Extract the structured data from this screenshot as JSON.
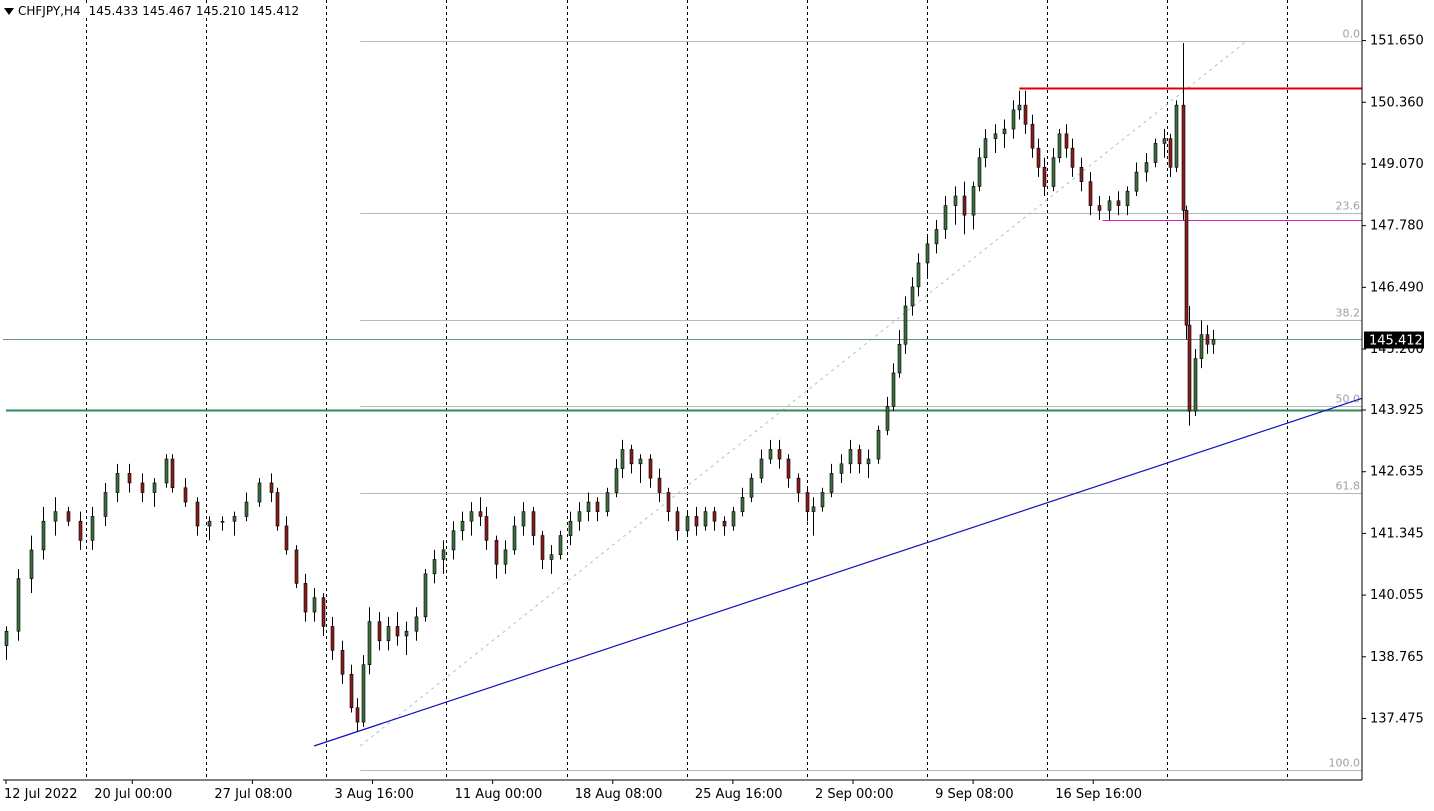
{
  "header": {
    "symbol": "CHFJPY,H4",
    "open": "145.433",
    "high": "145.467",
    "low": "145.210",
    "close": "145.412"
  },
  "colors": {
    "background": "#ffffff",
    "bull": "#3c6e3c",
    "bear": "#8b1c1c",
    "resistance": "#e00000",
    "support": "#2e8b57",
    "magenta": "#d020d0",
    "trendline": "#1010c0",
    "fib": "#b8b8b8",
    "current": "#6e8e9e"
  },
  "chart_data": {
    "type": "candlestick",
    "symbol": "CHFJPY",
    "timeframe": "H4",
    "y_axis": {
      "min": 136.9,
      "max": 151.85,
      "ticks": [
        "151.650",
        "150.360",
        "149.070",
        "147.780",
        "146.490",
        "145.200",
        "143.925",
        "142.635",
        "141.345",
        "140.055",
        "138.765",
        "137.475"
      ]
    },
    "x_axis": {
      "labels": [
        {
          "label": "12 Jul 2022",
          "index": 0
        },
        {
          "label": "20 Jul 00:00",
          "index": 41
        },
        {
          "label": "27 Jul 08:00",
          "index": 80
        },
        {
          "label": "3 Aug 16:00",
          "index": 119
        },
        {
          "label": "11 Aug 00:00",
          "index": 158
        },
        {
          "label": "18 Aug 08:00",
          "index": 197
        },
        {
          "label": "25 Aug 16:00",
          "index": 236
        },
        {
          "label": "2 Sep 00:00",
          "index": 275
        },
        {
          "label": "9 Sep 08:00",
          "index": 314
        },
        {
          "label": "16 Sep 16:00",
          "index": 353
        }
      ],
      "vlines": [
        26,
        65,
        104,
        143,
        182,
        221,
        260,
        299,
        338,
        377,
        416
      ]
    },
    "current_price": {
      "label": "145.412",
      "value": 145.412
    },
    "fibonacci": {
      "start_index": 115,
      "end_index": 403,
      "levels": [
        {
          "label": "0.0",
          "value": 151.65
        },
        {
          "label": "23.6",
          "value": 148.04
        },
        {
          "label": "38.2",
          "value": 145.81
        },
        {
          "label": "50.0",
          "value": 144.0
        },
        {
          "label": "61.8",
          "value": 142.2
        },
        {
          "label": "100.0",
          "value": 136.4
        }
      ]
    },
    "horizontal_lines": [
      {
        "name": "resistance",
        "value": 150.65,
        "from_index": 329,
        "to_index": 461
      },
      {
        "name": "support",
        "value": 143.92,
        "from_index": 0,
        "to_index": 461
      },
      {
        "name": "swing-low-level",
        "value": 147.9,
        "from_index": 356,
        "to_index": 461
      }
    ],
    "trendline": {
      "x1": 100,
      "y1": 136.9,
      "x2": 461,
      "y2": 144.17
    },
    "candles": [
      {
        "i": 0,
        "o": 139.0,
        "h": 139.4,
        "l": 138.7,
        "c": 139.3
      },
      {
        "i": 4,
        "o": 139.3,
        "h": 140.6,
        "l": 139.1,
        "c": 140.4
      },
      {
        "i": 8,
        "o": 140.4,
        "h": 141.3,
        "l": 140.1,
        "c": 141.0
      },
      {
        "i": 12,
        "o": 141.0,
        "h": 141.9,
        "l": 140.8,
        "c": 141.6
      },
      {
        "i": 16,
        "o": 141.6,
        "h": 142.1,
        "l": 141.3,
        "c": 141.8
      },
      {
        "i": 20,
        "o": 141.8,
        "h": 141.9,
        "l": 141.5,
        "c": 141.6
      },
      {
        "i": 24,
        "o": 141.6,
        "h": 141.8,
        "l": 141.0,
        "c": 141.2
      },
      {
        "i": 28,
        "o": 141.2,
        "h": 141.9,
        "l": 141.0,
        "c": 141.7
      },
      {
        "i": 32,
        "o": 141.7,
        "h": 142.4,
        "l": 141.5,
        "c": 142.2
      },
      {
        "i": 36,
        "o": 142.2,
        "h": 142.8,
        "l": 142.0,
        "c": 142.6
      },
      {
        "i": 40,
        "o": 142.6,
        "h": 142.8,
        "l": 142.2,
        "c": 142.4
      },
      {
        "i": 44,
        "o": 142.4,
        "h": 142.6,
        "l": 142.0,
        "c": 142.2
      },
      {
        "i": 48,
        "o": 142.2,
        "h": 142.5,
        "l": 141.9,
        "c": 142.4
      },
      {
        "i": 52,
        "o": 142.4,
        "h": 143.0,
        "l": 142.3,
        "c": 142.9
      },
      {
        "i": 54,
        "o": 142.9,
        "h": 143.0,
        "l": 142.2,
        "c": 142.3
      },
      {
        "i": 58,
        "o": 142.3,
        "h": 142.5,
        "l": 141.9,
        "c": 142.0
      },
      {
        "i": 62,
        "o": 142.0,
        "h": 142.1,
        "l": 141.3,
        "c": 141.5
      },
      {
        "i": 66,
        "o": 141.5,
        "h": 141.7,
        "l": 141.2,
        "c": 141.6
      },
      {
        "i": 70,
        "o": 141.6,
        "h": 141.7,
        "l": 141.4,
        "c": 141.6
      },
      {
        "i": 74,
        "o": 141.6,
        "h": 141.8,
        "l": 141.3,
        "c": 141.7
      },
      {
        "i": 78,
        "o": 141.7,
        "h": 142.2,
        "l": 141.6,
        "c": 142.0
      },
      {
        "i": 82,
        "o": 142.0,
        "h": 142.5,
        "l": 141.9,
        "c": 142.4
      },
      {
        "i": 86,
        "o": 142.4,
        "h": 142.6,
        "l": 142.0,
        "c": 142.2
      },
      {
        "i": 88,
        "o": 142.2,
        "h": 142.3,
        "l": 141.4,
        "c": 141.5
      },
      {
        "i": 91,
        "o": 141.5,
        "h": 141.7,
        "l": 140.9,
        "c": 141.0
      },
      {
        "i": 94,
        "o": 141.0,
        "h": 141.1,
        "l": 140.2,
        "c": 140.3
      },
      {
        "i": 97,
        "o": 140.3,
        "h": 140.5,
        "l": 139.5,
        "c": 139.7
      },
      {
        "i": 100,
        "o": 139.7,
        "h": 140.2,
        "l": 139.5,
        "c": 140.0
      },
      {
        "i": 103,
        "o": 140.0,
        "h": 140.1,
        "l": 139.2,
        "c": 139.4
      },
      {
        "i": 106,
        "o": 139.4,
        "h": 139.6,
        "l": 138.7,
        "c": 138.9
      },
      {
        "i": 109,
        "o": 138.9,
        "h": 139.1,
        "l": 138.2,
        "c": 138.4
      },
      {
        "i": 112,
        "o": 138.4,
        "h": 138.6,
        "l": 137.6,
        "c": 137.7
      },
      {
        "i": 114,
        "o": 137.7,
        "h": 137.9,
        "l": 137.2,
        "c": 137.4
      },
      {
        "i": 116,
        "o": 137.4,
        "h": 138.8,
        "l": 137.3,
        "c": 138.6
      },
      {
        "i": 118,
        "o": 138.6,
        "h": 139.8,
        "l": 138.4,
        "c": 139.5
      },
      {
        "i": 121,
        "o": 139.5,
        "h": 139.7,
        "l": 138.9,
        "c": 139.1
      },
      {
        "i": 124,
        "o": 139.1,
        "h": 139.6,
        "l": 138.9,
        "c": 139.4
      },
      {
        "i": 127,
        "o": 139.4,
        "h": 139.7,
        "l": 139.0,
        "c": 139.2
      },
      {
        "i": 130,
        "o": 139.2,
        "h": 139.5,
        "l": 138.8,
        "c": 139.3
      },
      {
        "i": 133,
        "o": 139.3,
        "h": 139.8,
        "l": 139.1,
        "c": 139.6
      },
      {
        "i": 136,
        "o": 139.6,
        "h": 140.6,
        "l": 139.5,
        "c": 140.5
      },
      {
        "i": 139,
        "o": 140.5,
        "h": 141.0,
        "l": 140.3,
        "c": 140.8
      },
      {
        "i": 142,
        "o": 140.8,
        "h": 141.2,
        "l": 140.5,
        "c": 141.0
      },
      {
        "i": 145,
        "o": 141.0,
        "h": 141.6,
        "l": 140.8,
        "c": 141.4
      },
      {
        "i": 148,
        "o": 141.4,
        "h": 141.8,
        "l": 141.2,
        "c": 141.6
      },
      {
        "i": 151,
        "o": 141.6,
        "h": 142.0,
        "l": 141.3,
        "c": 141.8
      },
      {
        "i": 154,
        "o": 141.8,
        "h": 142.1,
        "l": 141.5,
        "c": 141.7
      },
      {
        "i": 156,
        "o": 141.7,
        "h": 141.9,
        "l": 141.0,
        "c": 141.2
      },
      {
        "i": 159,
        "o": 141.2,
        "h": 141.3,
        "l": 140.4,
        "c": 140.7
      },
      {
        "i": 162,
        "o": 140.7,
        "h": 141.2,
        "l": 140.5,
        "c": 141.0
      },
      {
        "i": 165,
        "o": 141.0,
        "h": 141.7,
        "l": 140.9,
        "c": 141.5
      },
      {
        "i": 168,
        "o": 141.5,
        "h": 142.0,
        "l": 141.3,
        "c": 141.8
      },
      {
        "i": 171,
        "o": 141.8,
        "h": 141.9,
        "l": 141.1,
        "c": 141.3
      },
      {
        "i": 174,
        "o": 141.3,
        "h": 141.4,
        "l": 140.6,
        "c": 140.8
      },
      {
        "i": 177,
        "o": 140.8,
        "h": 141.1,
        "l": 140.5,
        "c": 140.9
      },
      {
        "i": 180,
        "o": 140.9,
        "h": 141.4,
        "l": 140.8,
        "c": 141.3
      },
      {
        "i": 183,
        "o": 141.3,
        "h": 141.8,
        "l": 141.1,
        "c": 141.6
      },
      {
        "i": 186,
        "o": 141.6,
        "h": 142.0,
        "l": 141.4,
        "c": 141.8
      },
      {
        "i": 189,
        "o": 141.8,
        "h": 142.2,
        "l": 141.6,
        "c": 142.0
      },
      {
        "i": 192,
        "o": 142.0,
        "h": 142.1,
        "l": 141.6,
        "c": 141.8
      },
      {
        "i": 195,
        "o": 141.8,
        "h": 142.3,
        "l": 141.7,
        "c": 142.2
      },
      {
        "i": 198,
        "o": 142.2,
        "h": 142.9,
        "l": 142.1,
        "c": 142.7
      },
      {
        "i": 200,
        "o": 142.7,
        "h": 143.3,
        "l": 142.5,
        "c": 143.1
      },
      {
        "i": 203,
        "o": 143.1,
        "h": 143.2,
        "l": 142.6,
        "c": 142.8
      },
      {
        "i": 206,
        "o": 142.8,
        "h": 143.0,
        "l": 142.4,
        "c": 142.9
      },
      {
        "i": 209,
        "o": 142.9,
        "h": 143.0,
        "l": 142.3,
        "c": 142.5
      },
      {
        "i": 212,
        "o": 142.5,
        "h": 142.7,
        "l": 142.0,
        "c": 142.2
      },
      {
        "i": 215,
        "o": 142.2,
        "h": 142.3,
        "l": 141.6,
        "c": 141.8
      },
      {
        "i": 218,
        "o": 141.8,
        "h": 141.9,
        "l": 141.2,
        "c": 141.4
      },
      {
        "i": 221,
        "o": 141.4,
        "h": 141.8,
        "l": 141.3,
        "c": 141.7
      },
      {
        "i": 224,
        "o": 141.7,
        "h": 141.9,
        "l": 141.3,
        "c": 141.5
      },
      {
        "i": 227,
        "o": 141.5,
        "h": 141.9,
        "l": 141.4,
        "c": 141.8
      },
      {
        "i": 230,
        "o": 141.8,
        "h": 141.9,
        "l": 141.4,
        "c": 141.6
      },
      {
        "i": 233,
        "o": 141.6,
        "h": 141.7,
        "l": 141.3,
        "c": 141.5
      },
      {
        "i": 236,
        "o": 141.5,
        "h": 141.9,
        "l": 141.4,
        "c": 141.8
      },
      {
        "i": 239,
        "o": 141.8,
        "h": 142.3,
        "l": 141.7,
        "c": 142.1
      },
      {
        "i": 242,
        "o": 142.1,
        "h": 142.6,
        "l": 142.0,
        "c": 142.5
      },
      {
        "i": 245,
        "o": 142.5,
        "h": 143.1,
        "l": 142.4,
        "c": 142.9
      },
      {
        "i": 248,
        "o": 142.9,
        "h": 143.3,
        "l": 142.8,
        "c": 143.1
      },
      {
        "i": 251,
        "o": 143.1,
        "h": 143.3,
        "l": 142.7,
        "c": 142.9
      },
      {
        "i": 254,
        "o": 142.9,
        "h": 143.0,
        "l": 142.3,
        "c": 142.5
      },
      {
        "i": 257,
        "o": 142.5,
        "h": 142.6,
        "l": 142.0,
        "c": 142.2
      },
      {
        "i": 260,
        "o": 142.2,
        "h": 142.3,
        "l": 141.6,
        "c": 141.8
      },
      {
        "i": 262,
        "o": 141.8,
        "h": 142.1,
        "l": 141.3,
        "c": 141.9
      },
      {
        "i": 265,
        "o": 141.9,
        "h": 142.3,
        "l": 141.8,
        "c": 142.2
      },
      {
        "i": 268,
        "o": 142.2,
        "h": 142.8,
        "l": 142.1,
        "c": 142.6
      },
      {
        "i": 271,
        "o": 142.6,
        "h": 143.0,
        "l": 142.4,
        "c": 142.8
      },
      {
        "i": 274,
        "o": 142.8,
        "h": 143.3,
        "l": 142.6,
        "c": 143.1
      },
      {
        "i": 277,
        "o": 143.1,
        "h": 143.2,
        "l": 142.6,
        "c": 142.8
      },
      {
        "i": 280,
        "o": 142.8,
        "h": 143.1,
        "l": 142.5,
        "c": 142.9
      },
      {
        "i": 283,
        "o": 142.9,
        "h": 143.6,
        "l": 142.8,
        "c": 143.5
      },
      {
        "i": 286,
        "o": 143.5,
        "h": 144.2,
        "l": 143.4,
        "c": 144.0
      },
      {
        "i": 288,
        "o": 144.0,
        "h": 144.9,
        "l": 143.9,
        "c": 144.7
      },
      {
        "i": 290,
        "o": 144.7,
        "h": 145.6,
        "l": 144.6,
        "c": 145.3
      },
      {
        "i": 292,
        "o": 145.3,
        "h": 146.3,
        "l": 145.1,
        "c": 146.1
      },
      {
        "i": 294,
        "o": 146.1,
        "h": 146.7,
        "l": 145.9,
        "c": 146.5
      },
      {
        "i": 296,
        "o": 146.5,
        "h": 147.2,
        "l": 146.3,
        "c": 147.0
      },
      {
        "i": 299,
        "o": 147.0,
        "h": 147.6,
        "l": 146.7,
        "c": 147.4
      },
      {
        "i": 302,
        "o": 147.4,
        "h": 147.9,
        "l": 147.2,
        "c": 147.7
      },
      {
        "i": 305,
        "o": 147.7,
        "h": 148.4,
        "l": 147.5,
        "c": 148.2
      },
      {
        "i": 308,
        "o": 148.2,
        "h": 148.6,
        "l": 147.8,
        "c": 148.4
      },
      {
        "i": 311,
        "o": 148.4,
        "h": 148.7,
        "l": 147.6,
        "c": 148.0
      },
      {
        "i": 314,
        "o": 148.0,
        "h": 148.7,
        "l": 147.7,
        "c": 148.6
      },
      {
        "i": 316,
        "o": 148.6,
        "h": 149.4,
        "l": 148.5,
        "c": 149.2
      },
      {
        "i": 318,
        "o": 149.2,
        "h": 149.8,
        "l": 149.0,
        "c": 149.6
      },
      {
        "i": 321,
        "o": 149.6,
        "h": 149.9,
        "l": 149.3,
        "c": 149.7
      },
      {
        "i": 324,
        "o": 149.7,
        "h": 150.0,
        "l": 149.4,
        "c": 149.8
      },
      {
        "i": 327,
        "o": 149.8,
        "h": 150.4,
        "l": 149.6,
        "c": 150.2
      },
      {
        "i": 329,
        "o": 150.2,
        "h": 150.6,
        "l": 150.0,
        "c": 150.3
      },
      {
        "i": 331,
        "o": 150.3,
        "h": 150.6,
        "l": 149.7,
        "c": 149.9
      },
      {
        "i": 333,
        "o": 149.9,
        "h": 150.1,
        "l": 149.2,
        "c": 149.4
      },
      {
        "i": 335,
        "o": 149.4,
        "h": 149.6,
        "l": 148.8,
        "c": 149.0
      },
      {
        "i": 337,
        "o": 149.0,
        "h": 149.2,
        "l": 148.4,
        "c": 148.6
      },
      {
        "i": 340,
        "o": 148.6,
        "h": 149.4,
        "l": 148.5,
        "c": 149.2
      },
      {
        "i": 342,
        "o": 149.2,
        "h": 149.8,
        "l": 149.1,
        "c": 149.7
      },
      {
        "i": 344,
        "o": 149.7,
        "h": 149.9,
        "l": 149.2,
        "c": 149.4
      },
      {
        "i": 346,
        "o": 149.4,
        "h": 149.6,
        "l": 148.8,
        "c": 149.0
      },
      {
        "i": 349,
        "o": 149.0,
        "h": 149.2,
        "l": 148.5,
        "c": 148.7
      },
      {
        "i": 352,
        "o": 148.7,
        "h": 148.9,
        "l": 148.0,
        "c": 148.2
      },
      {
        "i": 355,
        "o": 148.2,
        "h": 148.4,
        "l": 147.9,
        "c": 148.1
      },
      {
        "i": 358,
        "o": 148.1,
        "h": 148.4,
        "l": 147.9,
        "c": 148.3
      },
      {
        "i": 361,
        "o": 148.3,
        "h": 148.5,
        "l": 148.0,
        "c": 148.2
      },
      {
        "i": 364,
        "o": 148.2,
        "h": 148.6,
        "l": 148.0,
        "c": 148.5
      },
      {
        "i": 367,
        "o": 148.5,
        "h": 149.1,
        "l": 148.4,
        "c": 148.9
      },
      {
        "i": 370,
        "o": 148.9,
        "h": 149.3,
        "l": 148.7,
        "c": 149.1
      },
      {
        "i": 373,
        "o": 149.1,
        "h": 149.6,
        "l": 149.0,
        "c": 149.5
      },
      {
        "i": 376,
        "o": 149.5,
        "h": 149.8,
        "l": 149.2,
        "c": 149.6
      },
      {
        "i": 378,
        "o": 149.6,
        "h": 149.7,
        "l": 148.8,
        "c": 149.0
      },
      {
        "i": 380,
        "o": 149.0,
        "h": 150.4,
        "l": 148.9,
        "c": 150.3
      },
      {
        "i": 382,
        "o": 150.3,
        "h": 151.6,
        "l": 147.9,
        "c": 148.1
      },
      {
        "i": 383,
        "o": 148.1,
        "h": 148.2,
        "l": 145.4,
        "c": 145.7
      },
      {
        "i": 384,
        "o": 145.7,
        "h": 146.1,
        "l": 143.6,
        "c": 143.9
      },
      {
        "i": 386,
        "o": 143.9,
        "h": 145.2,
        "l": 143.8,
        "c": 145.0
      },
      {
        "i": 388,
        "o": 145.0,
        "h": 145.8,
        "l": 144.8,
        "c": 145.5
      },
      {
        "i": 390,
        "o": 145.5,
        "h": 145.7,
        "l": 145.1,
        "c": 145.3
      },
      {
        "i": 392,
        "o": 145.3,
        "h": 145.6,
        "l": 145.1,
        "c": 145.4
      }
    ]
  }
}
